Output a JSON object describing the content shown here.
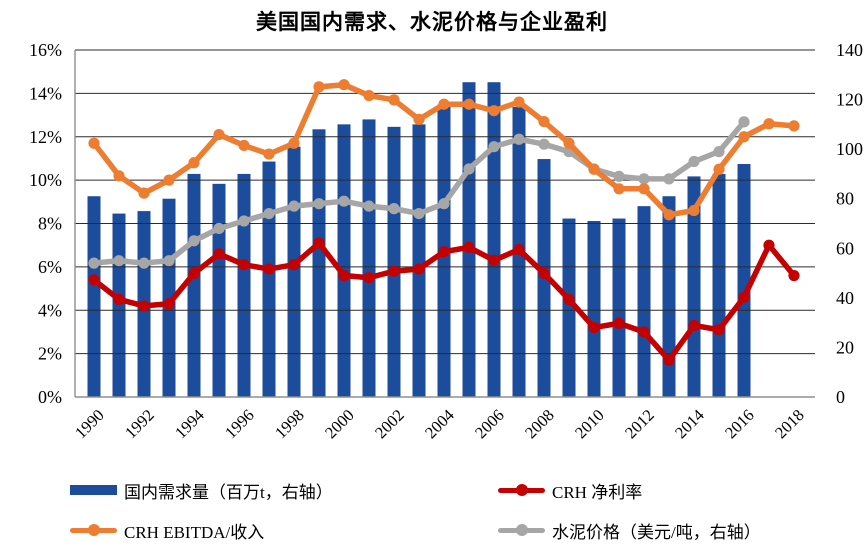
{
  "colors": {
    "bar": "#1C4C9C",
    "ebitda": "#ED7D31",
    "margin": "#C40000",
    "price": "#A6A6A6",
    "gridline": "#2b2b2b",
    "axisline": "#8f8f8f",
    "text": "#000000"
  },
  "axes": {
    "left_ticks": [
      "16%",
      "14%",
      "12%",
      "10%",
      "8%",
      "6%",
      "4%",
      "2%",
      "0%"
    ],
    "right_ticks": [
      "140",
      "120",
      "100",
      "80",
      "60",
      "40",
      "20",
      "0"
    ],
    "x_ticks": [
      "1990",
      "1992",
      "1994",
      "1996",
      "1998",
      "2000",
      "2002",
      "2004",
      "2006",
      "2008",
      "2010",
      "2012",
      "2014",
      "2016",
      "2018"
    ]
  },
  "legend": [
    {
      "label": "国内需求量（百万t，右轴）",
      "type": "bar",
      "color_key": "bar"
    },
    {
      "label": "CRH EBITDA/收入",
      "type": "line",
      "color_key": "ebitda"
    },
    {
      "label": "CRH 净利率",
      "type": "line",
      "color_key": "margin"
    },
    {
      "label": "水泥价格（美元/吨，右轴）",
      "type": "line",
      "color_key": "price"
    }
  ],
  "chart_data": {
    "type": "combo",
    "title": "美国国内需求、水泥价格与企业盈利",
    "x": [
      1990,
      1991,
      1992,
      1993,
      1994,
      1995,
      1996,
      1997,
      1998,
      1999,
      2000,
      2001,
      2002,
      2003,
      2004,
      2005,
      2006,
      2007,
      2008,
      2009,
      2010,
      2011,
      2012,
      2013,
      2014,
      2015,
      2016,
      2017,
      2018
    ],
    "series": [
      {
        "name": "国内需求量（百万t，右轴）",
        "type": "bar",
        "axis": "right",
        "unit": "百万t",
        "color_key": "bar",
        "values": [
          81,
          74,
          75,
          80,
          90,
          86,
          90,
          95,
          101,
          108,
          110,
          112,
          109,
          110,
          118,
          127,
          127,
          117,
          96,
          72,
          71,
          72,
          77,
          81,
          89,
          90,
          94,
          null,
          null
        ]
      },
      {
        "name": "水泥价格（美元/吨，右轴）",
        "type": "line",
        "axis": "right",
        "unit": "美元/吨",
        "color_key": "price",
        "values": [
          54,
          55,
          54,
          55,
          63,
          68,
          71,
          74,
          77,
          78,
          79,
          77,
          76,
          74,
          78,
          92,
          101,
          104,
          102,
          99,
          92,
          89,
          88,
          88,
          95,
          99,
          111,
          null,
          null
        ]
      },
      {
        "name": "CRH EBITDA/收入",
        "type": "line",
        "axis": "left",
        "unit": "%",
        "color_key": "ebitda",
        "values": [
          11.7,
          10.2,
          9.4,
          10.0,
          10.8,
          12.1,
          11.6,
          11.2,
          11.7,
          14.3,
          14.4,
          13.9,
          13.7,
          12.8,
          13.5,
          13.5,
          13.2,
          13.6,
          12.7,
          11.7,
          10.5,
          9.6,
          9.6,
          8.4,
          8.6,
          10.5,
          12.0,
          12.6,
          12.5
        ]
      },
      {
        "name": "CRH 净利率",
        "type": "line",
        "axis": "left",
        "unit": "%",
        "color_key": "margin",
        "values": [
          5.4,
          4.5,
          4.2,
          4.3,
          5.7,
          6.6,
          6.1,
          5.9,
          6.1,
          7.1,
          5.6,
          5.5,
          5.8,
          5.9,
          6.7,
          6.9,
          6.3,
          6.8,
          5.7,
          4.5,
          3.2,
          3.4,
          3.0,
          1.7,
          3.3,
          3.1,
          4.6,
          7.0,
          5.6
        ]
      }
    ],
    "left_axis": {
      "min": 0,
      "max": 16,
      "step": 2,
      "format": "percent"
    },
    "right_axis": {
      "min": 0,
      "max": 140,
      "step": 20
    },
    "grid": true,
    "legend_position": "bottom"
  }
}
